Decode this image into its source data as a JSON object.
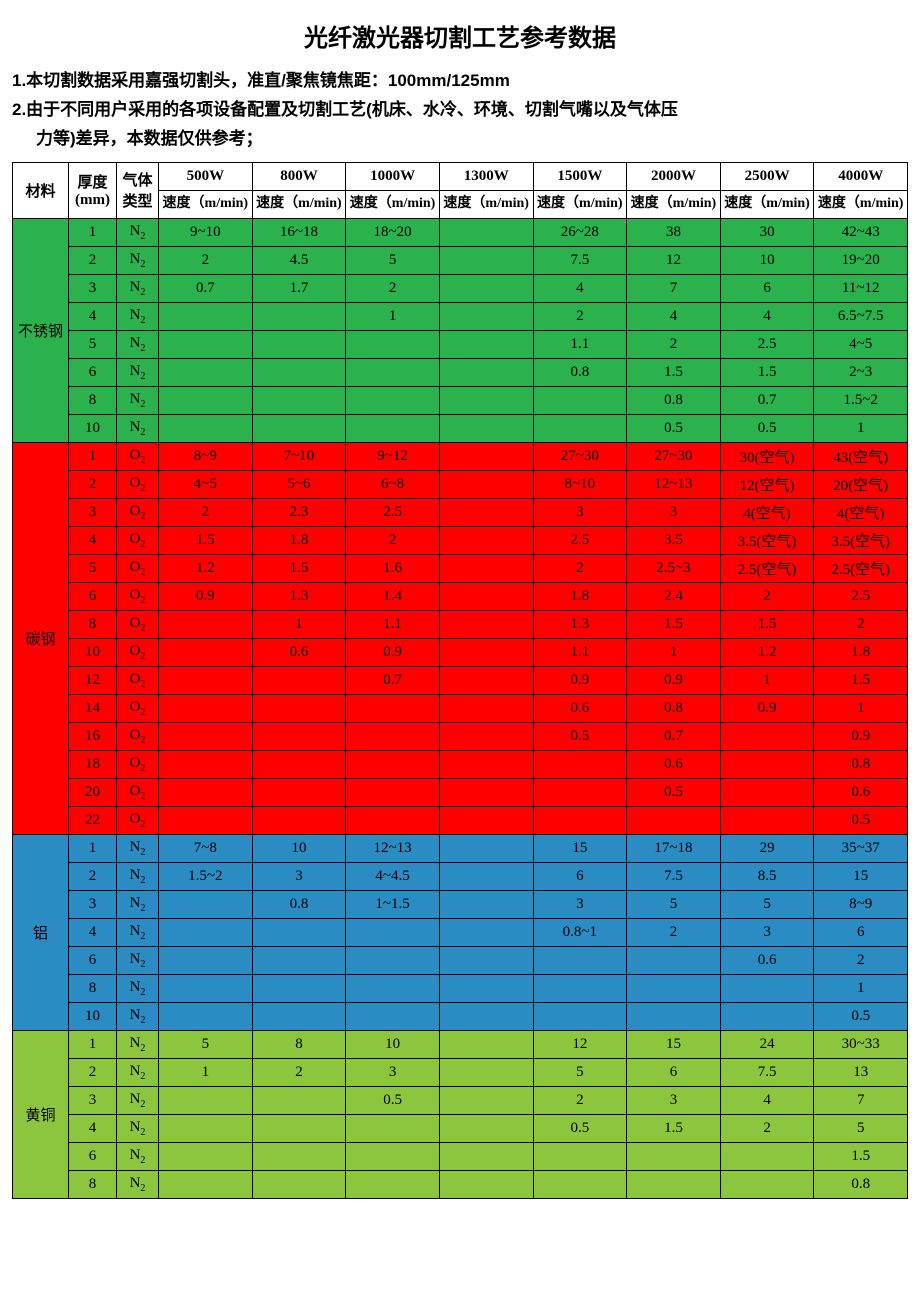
{
  "title": "光纤激光器切割工艺参考数据",
  "note1": "1.本切割数据采用嘉强切割头，准直/聚焦镜焦距：100mm/125mm",
  "note2a": "2.由于不同用户采用的各项设备配置及切割工艺(机床、水冷、环境、切割气嘴以及气体压",
  "note2b": "力等)差异，本数据仅供参考；",
  "colors": {
    "stainless": "#2bb24c",
    "carbon": "#ff0000",
    "aluminum": "#2b8cc4",
    "brass": "#8cc63f"
  },
  "headers": {
    "material": "材料",
    "thickness": "厚度(mm)",
    "gas": "气体类型",
    "speed": "速度（m/min)",
    "powers": [
      "500W",
      "800W",
      "1000W",
      "1300W",
      "1500W",
      "2000W",
      "2500W",
      "4000W"
    ]
  },
  "materials": [
    {
      "name": "不锈钢",
      "colorKey": "stainless",
      "rows": [
        {
          "t": "1",
          "g": "N",
          "v": [
            "9~10",
            "16~18",
            "18~20",
            "",
            "26~28",
            "38",
            "30",
            "42~43"
          ]
        },
        {
          "t": "2",
          "g": "N",
          "v": [
            "2",
            "4.5",
            "5",
            "",
            "7.5",
            "12",
            "10",
            "19~20"
          ]
        },
        {
          "t": "3",
          "g": "N",
          "v": [
            "0.7",
            "1.7",
            "2",
            "",
            "4",
            "7",
            "6",
            "11~12"
          ]
        },
        {
          "t": "4",
          "g": "N",
          "v": [
            "",
            "",
            "1",
            "",
            "2",
            "4",
            "4",
            "6.5~7.5"
          ]
        },
        {
          "t": "5",
          "g": "N",
          "v": [
            "",
            "",
            "",
            "",
            "1.1",
            "2",
            "2.5",
            "4~5"
          ]
        },
        {
          "t": "6",
          "g": "N",
          "v": [
            "",
            "",
            "",
            "",
            "0.8",
            "1.5",
            "1.5",
            "2~3"
          ]
        },
        {
          "t": "8",
          "g": "N",
          "v": [
            "",
            "",
            "",
            "",
            "",
            "0.8",
            "0.7",
            "1.5~2"
          ]
        },
        {
          "t": "10",
          "g": "N",
          "v": [
            "",
            "",
            "",
            "",
            "",
            "0.5",
            "0.5",
            "1"
          ]
        }
      ]
    },
    {
      "name": "碳钢",
      "colorKey": "carbon",
      "rows": [
        {
          "t": "1",
          "g": "O",
          "v": [
            "8~9",
            "7~10",
            "9~12",
            "",
            "27~30",
            "27~30",
            "30(空气)",
            "43(空气)"
          ]
        },
        {
          "t": "2",
          "g": "O",
          "v": [
            "4~5",
            "5~6",
            "6~8",
            "",
            "8~10",
            "12~13",
            "12(空气)",
            "20(空气)"
          ]
        },
        {
          "t": "3",
          "g": "O",
          "v": [
            "2",
            "2.3",
            "2.5",
            "",
            "3",
            "3",
            "4(空气)",
            "4(空气)"
          ]
        },
        {
          "t": "4",
          "g": "O",
          "v": [
            "1.5",
            "1.8",
            "2",
            "",
            "2.5",
            "3.5",
            "3.5(空气)",
            "3.5(空气)"
          ]
        },
        {
          "t": "5",
          "g": "O",
          "v": [
            "1.2",
            "1.5",
            "1.6",
            "",
            "2",
            "2.5~3",
            "2.5(空气)",
            "2.5(空气)"
          ]
        },
        {
          "t": "6",
          "g": "O",
          "v": [
            "0.9",
            "1.3",
            "1.4",
            "",
            "1.8",
            "2.4",
            "2",
            "2.5"
          ]
        },
        {
          "t": "8",
          "g": "O",
          "v": [
            "",
            "1",
            "1.1",
            "",
            "1.3",
            "1.5",
            "1.5",
            "2"
          ]
        },
        {
          "t": "10",
          "g": "O",
          "v": [
            "",
            "0.6",
            "0.9",
            "",
            "1.1",
            "1",
            "1.2",
            "1.8"
          ]
        },
        {
          "t": "12",
          "g": "O",
          "v": [
            "",
            "",
            "0.7",
            "",
            "0.9",
            "0.9",
            "1",
            "1.5"
          ]
        },
        {
          "t": "14",
          "g": "O",
          "v": [
            "",
            "",
            "",
            "",
            "0.6",
            "0.8",
            "0.9",
            "1"
          ]
        },
        {
          "t": "16",
          "g": "O",
          "v": [
            "",
            "",
            "",
            "",
            "0.5",
            "0.7",
            "",
            "0.9"
          ]
        },
        {
          "t": "18",
          "g": "O",
          "v": [
            "",
            "",
            "",
            "",
            "",
            "0.6",
            "",
            "0.8"
          ]
        },
        {
          "t": "20",
          "g": "O",
          "v": [
            "",
            "",
            "",
            "",
            "",
            "0.5",
            "",
            "0.6"
          ]
        },
        {
          "t": "22",
          "g": "O",
          "v": [
            "",
            "",
            "",
            "",
            "",
            "",
            "",
            "0.5"
          ]
        }
      ]
    },
    {
      "name": "铝",
      "colorKey": "aluminum",
      "rows": [
        {
          "t": "1",
          "g": "N",
          "v": [
            "7~8",
            "10",
            "12~13",
            "",
            "15",
            "17~18",
            "29",
            "35~37"
          ]
        },
        {
          "t": "2",
          "g": "N",
          "v": [
            "1.5~2",
            "3",
            "4~4.5",
            "",
            "6",
            "7.5",
            "8.5",
            "15"
          ]
        },
        {
          "t": "3",
          "g": "N",
          "v": [
            "",
            "0.8",
            "1~1.5",
            "",
            "3",
            "5",
            "5",
            "8~9"
          ]
        },
        {
          "t": "4",
          "g": "N",
          "v": [
            "",
            "",
            "",
            "",
            "0.8~1",
            "2",
            "3",
            "6"
          ]
        },
        {
          "t": "6",
          "g": "N",
          "v": [
            "",
            "",
            "",
            "",
            "",
            "",
            "0.6",
            "2"
          ]
        },
        {
          "t": "8",
          "g": "N",
          "v": [
            "",
            "",
            "",
            "",
            "",
            "",
            "",
            "1"
          ]
        },
        {
          "t": "10",
          "g": "N",
          "v": [
            "",
            "",
            "",
            "",
            "",
            "",
            "",
            "0.5"
          ]
        }
      ]
    },
    {
      "name": "黄铜",
      "colorKey": "brass",
      "rows": [
        {
          "t": "1",
          "g": "N",
          "v": [
            "5",
            "8",
            "10",
            "",
            "12",
            "15",
            "24",
            "30~33"
          ]
        },
        {
          "t": "2",
          "g": "N",
          "v": [
            "1",
            "2",
            "3",
            "",
            "5",
            "6",
            "7.5",
            "13"
          ]
        },
        {
          "t": "3",
          "g": "N",
          "v": [
            "",
            "",
            "0.5",
            "",
            "2",
            "3",
            "4",
            "7"
          ]
        },
        {
          "t": "4",
          "g": "N",
          "v": [
            "",
            "",
            "",
            "",
            "0.5",
            "1.5",
            "2",
            "5"
          ]
        },
        {
          "t": "6",
          "g": "N",
          "v": [
            "",
            "",
            "",
            "",
            "",
            "",
            "",
            "1.5"
          ]
        },
        {
          "t": "8",
          "g": "N",
          "v": [
            "",
            "",
            "",
            "",
            "",
            "",
            "",
            "0.8"
          ]
        }
      ]
    }
  ]
}
